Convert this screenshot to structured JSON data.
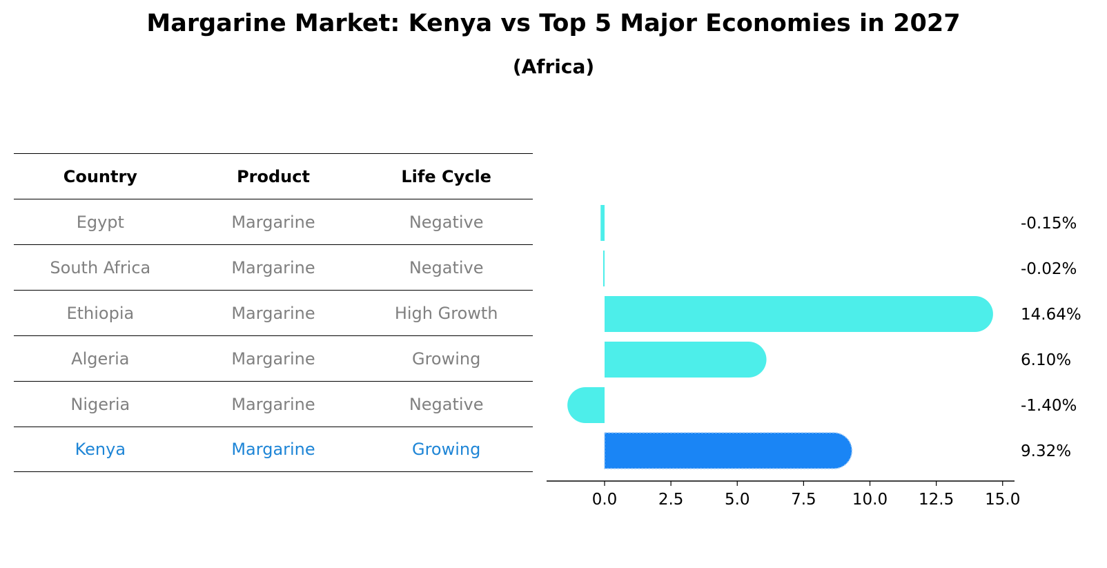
{
  "chart_data": {
    "type": "bar",
    "orientation": "horizontal",
    "title": "Margarine Market: Kenya vs Top 5 Major Economies in 2027",
    "subtitle": "(Africa)",
    "columns": [
      "Country",
      "Product",
      "Life Cycle"
    ],
    "rows": [
      {
        "country": "Egypt",
        "product": "Margarine",
        "life_cycle": "Negative",
        "value": -0.15,
        "label": "-0.15%",
        "highlight": false
      },
      {
        "country": "South Africa",
        "product": "Margarine",
        "life_cycle": "Negative",
        "value": -0.02,
        "label": "-0.02%",
        "highlight": false
      },
      {
        "country": "Ethiopia",
        "product": "Margarine",
        "life_cycle": "High Growth",
        "value": 14.64,
        "label": "14.64%",
        "highlight": false
      },
      {
        "country": "Algeria",
        "product": "Margarine",
        "life_cycle": "Growing",
        "value": 6.1,
        "label": "6.10%",
        "highlight": false
      },
      {
        "country": "Nigeria",
        "product": "Margarine",
        "life_cycle": "Negative",
        "value": -1.4,
        "label": "-1.40%",
        "highlight": false
      },
      {
        "country": "Kenya",
        "product": "Margarine",
        "life_cycle": "Growing",
        "value": 9.32,
        "label": "9.32%",
        "highlight": true
      }
    ],
    "xlim": [
      -2.2,
      15.5
    ],
    "xticks": [
      0.0,
      2.5,
      5.0,
      7.5,
      10.0,
      12.5,
      15.0
    ],
    "xtick_labels": [
      "0.0",
      "2.5",
      "5.0",
      "7.5",
      "10.0",
      "12.5",
      "15.0"
    ],
    "colors": {
      "default": "#4deeea",
      "highlight": "#1a85f5",
      "highlight_text": "#1e85d6",
      "muted_text": "#808080"
    }
  }
}
